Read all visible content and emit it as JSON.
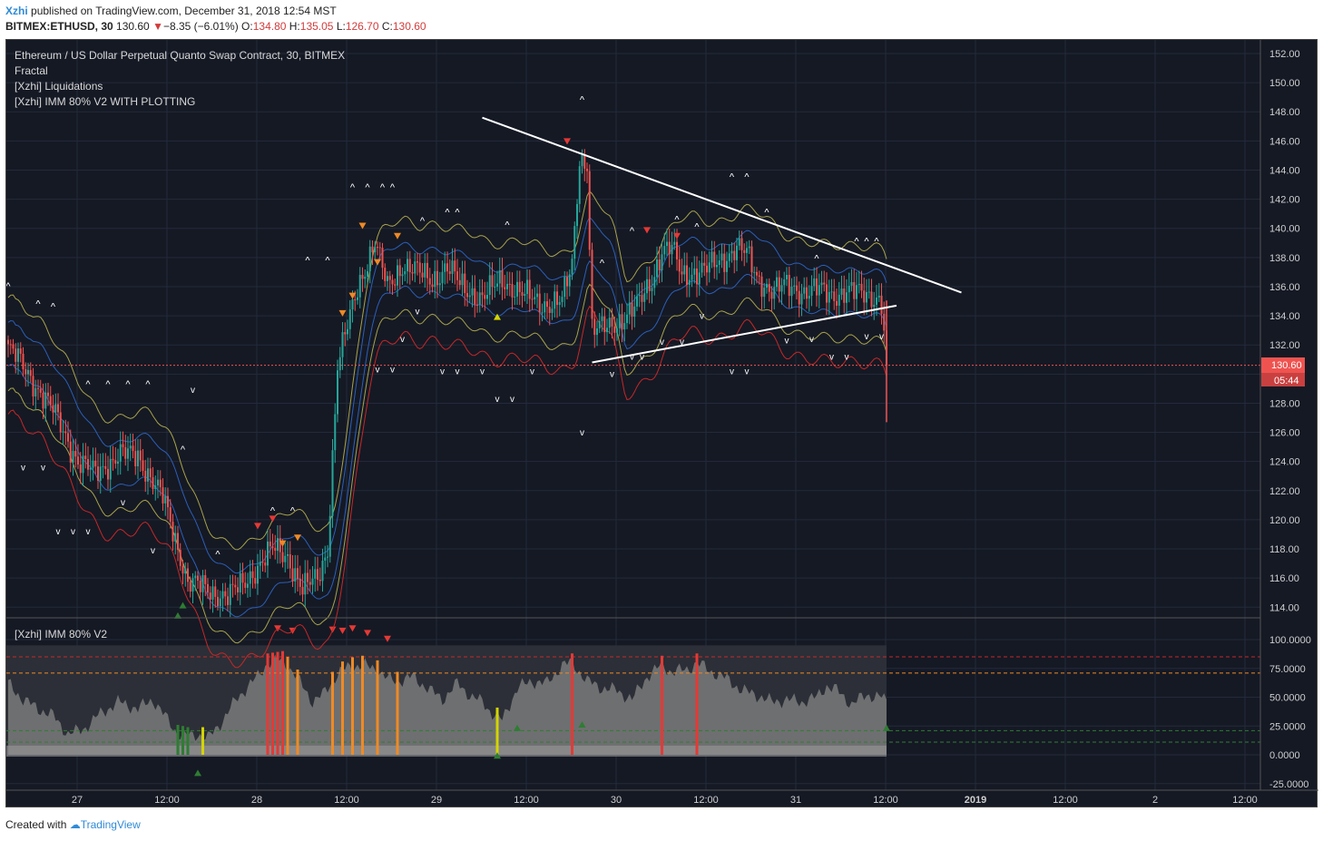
{
  "header": {
    "user": "Xzhi",
    "published_text": "published on TradingView.com, December 31, 2018 12:54 MST",
    "symbol": "BITMEX:ETHUSD, 30",
    "last": "130.60",
    "change": "−8.35 (−6.01%)",
    "o_label": "O:",
    "o_value": "134.80",
    "h_label": "H:",
    "h_value": "135.05",
    "l_label": "L:",
    "l_value": "126.70",
    "c_label": "C:",
    "c_value": "130.60"
  },
  "legend": {
    "title": "Ethereum / US Dollar Perpetual Quanto Swap Contract, 30, BITMEX",
    "line2": "Fractal",
    "line3": "[Xzhi] Liquidations",
    "line4": "[Xzhi] IMM 80% V2 WITH PLOTTING"
  },
  "sub_pane": {
    "title": "[Xzhi] IMM 80% V2"
  },
  "price_tag": {
    "value": "130.60",
    "countdown": "05:44"
  },
  "footer": {
    "created_with": "Created with",
    "brand": "TradingView"
  },
  "colors": {
    "background": "#151924",
    "up": "#26a69a",
    "down": "#ef5350",
    "band_outer": "#a8a34a",
    "band_inner": "#2b5fb8",
    "band_lower": "#c62828",
    "price_line": "#ef5350",
    "trendline": "#ffffff",
    "osc": "#7a7a7a"
  },
  "chart_data": [
    {
      "type": "candlestick",
      "title": "Ethereum / US Dollar Perpetual Quanto Swap Contract, 30, BITMEX",
      "ylim": [
        113,
        152.5
      ],
      "y_ticks": [
        "152.00",
        "150.00",
        "148.00",
        "146.00",
        "144.00",
        "142.00",
        "140.00",
        "138.00",
        "136.00",
        "134.00",
        "132.00",
        "130.00",
        "128.00",
        "126.00",
        "124.00",
        "122.00",
        "120.00",
        "118.00",
        "116.00",
        "114.00"
      ],
      "x_ticks": [
        "27",
        "12:00",
        "28",
        "12:00",
        "29",
        "12:00",
        "30",
        "12:00",
        "31",
        "12:00",
        "2019",
        "12:00",
        "2",
        "12:00"
      ],
      "price_anchors": [
        [
          0,
          131.8
        ],
        [
          4,
          131.0
        ],
        [
          10,
          129.5
        ],
        [
          18,
          127.5
        ],
        [
          28,
          124.0
        ],
        [
          35,
          123.2
        ],
        [
          45,
          124.5
        ],
        [
          52,
          124.4
        ],
        [
          62,
          121.5
        ],
        [
          72,
          115.8
        ],
        [
          82,
          115.0
        ],
        [
          88,
          114.8
        ],
        [
          94,
          115.5
        ],
        [
          100,
          116.8
        ],
        [
          106,
          118.0
        ],
        [
          112,
          117.5
        ],
        [
          118,
          115.2
        ],
        [
          124,
          116.0
        ],
        [
          128,
          118.0
        ],
        [
          132,
          130.5
        ],
        [
          140,
          136.0
        ],
        [
          147,
          139.0
        ],
        [
          152,
          136.0
        ],
        [
          158,
          137.5
        ],
        [
          164,
          137.0
        ],
        [
          170,
          136.5
        ],
        [
          176,
          137.3
        ],
        [
          182,
          136.0
        ],
        [
          190,
          135.2
        ],
        [
          198,
          136.5
        ],
        [
          206,
          135.5
        ],
        [
          214,
          134.8
        ],
        [
          222,
          135.0
        ],
        [
          226,
          137.5
        ],
        [
          229,
          144.8
        ],
        [
          232,
          144.5
        ],
        [
          234,
          133.0
        ],
        [
          240,
          133.2
        ],
        [
          246,
          133.8
        ],
        [
          252,
          134.6
        ],
        [
          258,
          136.5
        ],
        [
          262,
          138.5
        ],
        [
          266,
          138.6
        ],
        [
          270,
          136.8
        ],
        [
          274,
          137.0
        ],
        [
          280,
          137.2
        ],
        [
          286,
          137.8
        ],
        [
          292,
          138.8
        ],
        [
          296,
          138.2
        ],
        [
          300,
          136.6
        ],
        [
          306,
          135.8
        ],
        [
          312,
          136.0
        ],
        [
          318,
          135.7
        ],
        [
          324,
          135.8
        ],
        [
          330,
          135.4
        ],
        [
          336,
          135.7
        ],
        [
          342,
          135.5
        ],
        [
          348,
          135.3
        ],
        [
          350,
          135.0
        ],
        [
          352,
          130.6
        ]
      ],
      "bands": {
        "outer_upper_offset": 3.2,
        "inner_upper_offset": 1.5,
        "inner_lower_offset": -1.5,
        "outer_lower_offset": -3.2,
        "lower_red_offset": -4.8
      },
      "trendlines": [
        {
          "name": "upper",
          "from": [
            190,
            147.6
          ],
          "to": [
            382,
            135.6
          ]
        },
        {
          "name": "lower",
          "from": [
            234,
            130.8
          ],
          "to": [
            356,
            134.7
          ]
        }
      ],
      "last_price": 130.6,
      "fractal_up_markers": [
        [
          0,
          135.8
        ],
        [
          12,
          134.6
        ],
        [
          18,
          134.4
        ],
        [
          32,
          129.1
        ],
        [
          40,
          129.1
        ],
        [
          48,
          129.1
        ],
        [
          56,
          129.1
        ],
        [
          70,
          124.6
        ],
        [
          84,
          117.4
        ],
        [
          106,
          120.4
        ],
        [
          114,
          120.4
        ],
        [
          120,
          137.6
        ],
        [
          128,
          137.6
        ],
        [
          138,
          142.6
        ],
        [
          144,
          142.6
        ],
        [
          150,
          142.6
        ],
        [
          154,
          142.6
        ],
        [
          166,
          140.3
        ],
        [
          176,
          140.9
        ],
        [
          180,
          140.9
        ],
        [
          200,
          140.0
        ],
        [
          230,
          148.6
        ],
        [
          238,
          137.4
        ],
        [
          250,
          139.6
        ],
        [
          268,
          140.4
        ],
        [
          276,
          139.9
        ],
        [
          290,
          143.3
        ],
        [
          296,
          143.3
        ],
        [
          304,
          140.9
        ],
        [
          324,
          137.7
        ],
        [
          340,
          138.9
        ],
        [
          344,
          138.9
        ],
        [
          348,
          138.9
        ]
      ],
      "fractal_down_markers": [
        [
          6,
          123.4
        ],
        [
          14,
          123.4
        ],
        [
          20,
          119.0
        ],
        [
          26,
          119.0
        ],
        [
          32,
          119.0
        ],
        [
          46,
          121.0
        ],
        [
          58,
          117.7
        ],
        [
          74,
          128.7
        ],
        [
          148,
          130.1
        ],
        [
          154,
          130.1
        ],
        [
          158,
          132.2
        ],
        [
          164,
          134.1
        ],
        [
          174,
          130.0
        ],
        [
          180,
          130.0
        ],
        [
          190,
          130.0
        ],
        [
          196,
          128.1
        ],
        [
          202,
          128.1
        ],
        [
          210,
          130.0
        ],
        [
          230,
          125.8
        ],
        [
          242,
          129.8
        ],
        [
          250,
          131.0
        ],
        [
          254,
          131.0
        ],
        [
          262,
          132.0
        ],
        [
          270,
          132.0
        ],
        [
          278,
          133.8
        ],
        [
          290,
          130.0
        ],
        [
          296,
          130.0
        ],
        [
          312,
          132.1
        ],
        [
          322,
          132.2
        ],
        [
          330,
          131.0
        ],
        [
          336,
          131.0
        ],
        [
          344,
          132.4
        ],
        [
          350,
          132.4
        ]
      ],
      "liquidation_markers": [
        {
          "x": 100,
          "y": 119.6,
          "color": "#e53935"
        },
        {
          "x": 106,
          "y": 120.1,
          "color": "#e53935"
        },
        {
          "x": 110,
          "y": 118.4,
          "color": "#ef8a24"
        },
        {
          "x": 116,
          "y": 118.8,
          "color": "#ef8a24"
        },
        {
          "x": 134,
          "y": 134.2,
          "color": "#ef8a24"
        },
        {
          "x": 138,
          "y": 135.4,
          "color": "#ef8a24"
        },
        {
          "x": 142,
          "y": 140.2,
          "color": "#ef8a24"
        },
        {
          "x": 148,
          "y": 137.7,
          "color": "#ef8a24"
        },
        {
          "x": 156,
          "y": 139.5,
          "color": "#ef8a24"
        },
        {
          "x": 196,
          "y": 133.9,
          "color": "#d4d400"
        },
        {
          "x": 224,
          "y": 146.0,
          "color": "#e53935"
        },
        {
          "x": 256,
          "y": 139.9,
          "color": "#e53935"
        },
        {
          "x": 268,
          "y": 139.5,
          "color": "#e53935"
        },
        {
          "x": 70,
          "y": 114.1,
          "color": "#2e7d32"
        },
        {
          "x": 68,
          "y": 113.4,
          "color": "#2e7d32"
        }
      ]
    },
    {
      "type": "area",
      "title": "[Xzhi] IMM 80% V2",
      "ylim": [
        -25,
        100
      ],
      "y_ticks": [
        "100.0000",
        "75.0000",
        "50.0000",
        "25.0000",
        "0.0000",
        "-25.0000"
      ],
      "thresholds": [
        85,
        71,
        21,
        11
      ],
      "osc_anchors": [
        [
          0,
          62
        ],
        [
          6,
          48
        ],
        [
          12,
          40
        ],
        [
          18,
          34
        ],
        [
          24,
          18
        ],
        [
          30,
          22
        ],
        [
          36,
          34
        ],
        [
          44,
          46
        ],
        [
          52,
          40
        ],
        [
          58,
          48
        ],
        [
          64,
          30
        ],
        [
          68,
          18
        ],
        [
          72,
          16
        ],
        [
          76,
          18
        ],
        [
          80,
          14
        ],
        [
          86,
          30
        ],
        [
          92,
          50
        ],
        [
          100,
          68
        ],
        [
          104,
          80
        ],
        [
          110,
          82
        ],
        [
          114,
          72
        ],
        [
          118,
          60
        ],
        [
          122,
          46
        ],
        [
          126,
          52
        ],
        [
          132,
          70
        ],
        [
          136,
          76
        ],
        [
          142,
          78
        ],
        [
          148,
          74
        ],
        [
          152,
          66
        ],
        [
          156,
          64
        ],
        [
          162,
          68
        ],
        [
          168,
          58
        ],
        [
          174,
          48
        ],
        [
          180,
          62
        ],
        [
          186,
          50
        ],
        [
          190,
          46
        ],
        [
          194,
          36
        ],
        [
          198,
          30
        ],
        [
          204,
          58
        ],
        [
          210,
          64
        ],
        [
          216,
          62
        ],
        [
          222,
          78
        ],
        [
          226,
          80
        ],
        [
          232,
          64
        ],
        [
          238,
          58
        ],
        [
          244,
          56
        ],
        [
          250,
          48
        ],
        [
          256,
          68
        ],
        [
          262,
          78
        ],
        [
          266,
          72
        ],
        [
          272,
          74
        ],
        [
          276,
          80
        ],
        [
          282,
          72
        ],
        [
          288,
          66
        ],
        [
          294,
          56
        ],
        [
          300,
          52
        ],
        [
          306,
          46
        ],
        [
          312,
          48
        ],
        [
          318,
          46
        ],
        [
          324,
          50
        ],
        [
          328,
          60
        ],
        [
          332,
          56
        ],
        [
          338,
          44
        ],
        [
          344,
          52
        ],
        [
          350,
          50
        ],
        [
          352,
          46
        ]
      ],
      "colored_bars": [
        {
          "x": 68,
          "color": "#2e7d32"
        },
        {
          "x": 70,
          "color": "#2e7d32"
        },
        {
          "x": 72,
          "color": "#2e7d32"
        },
        {
          "x": 78,
          "color": "#d4d400"
        },
        {
          "x": 104,
          "color": "#e53935"
        },
        {
          "x": 106,
          "color": "#e53935"
        },
        {
          "x": 108,
          "color": "#e53935"
        },
        {
          "x": 110,
          "color": "#e53935"
        },
        {
          "x": 112,
          "color": "#ef8a24"
        },
        {
          "x": 116,
          "color": "#ef8a24"
        },
        {
          "x": 130,
          "color": "#ef8a24"
        },
        {
          "x": 134,
          "color": "#ef8a24"
        },
        {
          "x": 138,
          "color": "#ef8a24"
        },
        {
          "x": 142,
          "color": "#ef8a24"
        },
        {
          "x": 148,
          "color": "#ef8a24"
        },
        {
          "x": 156,
          "color": "#ef8a24"
        },
        {
          "x": 196,
          "color": "#d4d400"
        },
        {
          "x": 226,
          "color": "#e53935"
        },
        {
          "x": 262,
          "color": "#e53935"
        },
        {
          "x": 276,
          "color": "#e53935"
        }
      ],
      "top_markers": [
        [
          108,
          110
        ],
        [
          114,
          108
        ],
        [
          130,
          109
        ],
        [
          134,
          108
        ],
        [
          138,
          110
        ],
        [
          144,
          106
        ],
        [
          152,
          101
        ]
      ],
      "arrow_up_markers": [
        {
          "x": 76,
          "y": -16,
          "color": "#2e7d32"
        },
        {
          "x": 196,
          "y": -1,
          "color": "#2e7d32"
        },
        {
          "x": 204,
          "y": 23,
          "color": "#2e7d32"
        },
        {
          "x": 230,
          "y": 26,
          "color": "#2e7d32"
        },
        {
          "x": 352,
          "y": 23,
          "color": "#2e7d32"
        }
      ]
    }
  ]
}
